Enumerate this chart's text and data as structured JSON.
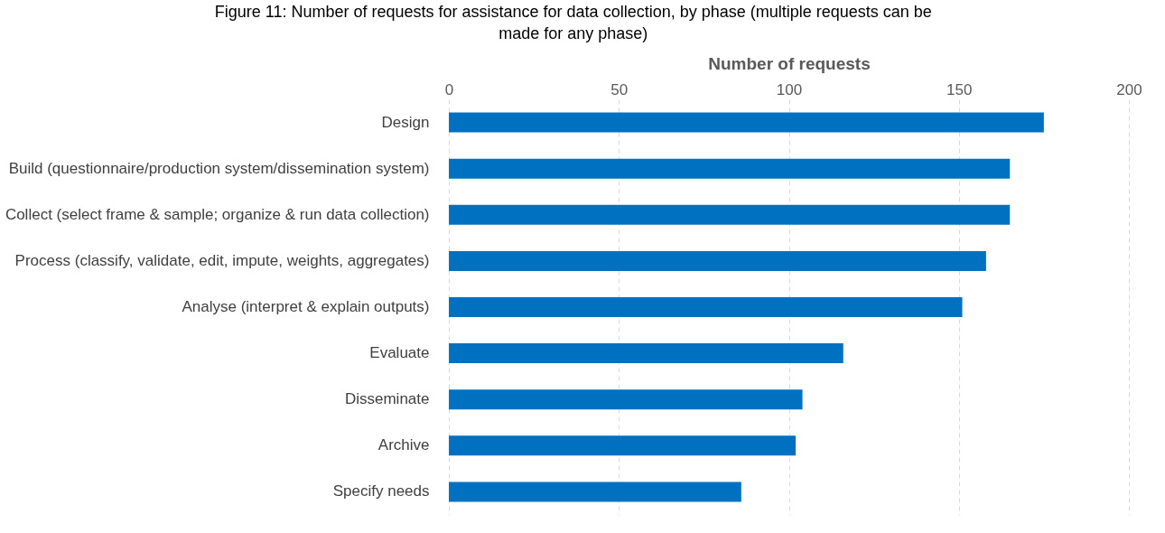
{
  "chart_data": {
    "type": "bar",
    "orientation": "horizontal",
    "title": "Figure 11: Number of requests for assistance for data collection, by phase (multiple requests can be made for any phase)",
    "xlabel": "Number of requests",
    "categories": [
      "Design",
      "Build (questionnaire/production system/dissemination system)",
      "Collect (select frame & sample; organize & run data collection)",
      "Process (classify, validate, edit, impute, weights, aggregates)",
      "Analyse (interpret & explain outputs)",
      "Evaluate",
      "Disseminate",
      "Archive",
      "Specify needs"
    ],
    "values": [
      175,
      165,
      165,
      158,
      151,
      116,
      104,
      102,
      86
    ],
    "color": "#0070c0",
    "xlim": [
      0,
      200
    ],
    "xticks": [
      0,
      50,
      100,
      150,
      200
    ],
    "grid": "x"
  }
}
